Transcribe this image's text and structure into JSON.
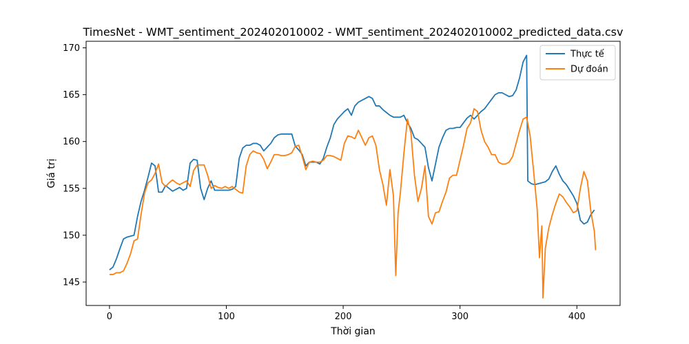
{
  "chart_data": {
    "type": "line",
    "title": "TimesNet - WMT_sentiment_202402010002 - WMT_sentiment_202402010002_predicted_data.csv",
    "xlabel": "Thời gian",
    "ylabel": "Giá trị",
    "xlim": [
      -20,
      437
    ],
    "ylim": [
      142.5,
      170.7
    ],
    "x_ticks": [
      0,
      100,
      200,
      300,
      400
    ],
    "y_ticks": [
      145,
      150,
      155,
      160,
      165,
      170
    ],
    "legend_position": "top-right",
    "grid": false,
    "series": [
      {
        "name": "Thực tế",
        "color": "#1f77b4",
        "points": [
          [
            0,
            146.3
          ],
          [
            3,
            146.6
          ],
          [
            6,
            147.5
          ],
          [
            9,
            148.6
          ],
          [
            12,
            149.6
          ],
          [
            15,
            149.8
          ],
          [
            18,
            149.9
          ],
          [
            21,
            150.0
          ],
          [
            24,
            152.0
          ],
          [
            27,
            153.6
          ],
          [
            30,
            154.8
          ],
          [
            33,
            156.2
          ],
          [
            36,
            157.7
          ],
          [
            39,
            157.4
          ],
          [
            42,
            154.6
          ],
          [
            45,
            154.6
          ],
          [
            48,
            155.3
          ],
          [
            51,
            155.0
          ],
          [
            54,
            154.7
          ],
          [
            57,
            154.9
          ],
          [
            60,
            155.1
          ],
          [
            63,
            154.8
          ],
          [
            66,
            155.0
          ],
          [
            69,
            157.7
          ],
          [
            72,
            158.1
          ],
          [
            75,
            158.0
          ],
          [
            78,
            155.0
          ],
          [
            81,
            153.8
          ],
          [
            84,
            155.0
          ],
          [
            87,
            155.8
          ],
          [
            90,
            154.8
          ],
          [
            93,
            154.8
          ],
          [
            96,
            154.8
          ],
          [
            99,
            154.8
          ],
          [
            102,
            154.8
          ],
          [
            105,
            154.9
          ],
          [
            108,
            155.2
          ],
          [
            111,
            158.2
          ],
          [
            114,
            159.3
          ],
          [
            117,
            159.6
          ],
          [
            120,
            159.6
          ],
          [
            123,
            159.8
          ],
          [
            126,
            159.8
          ],
          [
            129,
            159.6
          ],
          [
            132,
            159.0
          ],
          [
            135,
            159.4
          ],
          [
            138,
            159.8
          ],
          [
            141,
            160.4
          ],
          [
            144,
            160.7
          ],
          [
            147,
            160.8
          ],
          [
            150,
            160.8
          ],
          [
            153,
            160.8
          ],
          [
            156,
            160.8
          ],
          [
            159,
            159.5
          ],
          [
            162,
            159.1
          ],
          [
            165,
            158.6
          ],
          [
            168,
            157.4
          ],
          [
            171,
            157.8
          ],
          [
            174,
            157.8
          ],
          [
            177,
            157.8
          ],
          [
            180,
            157.6
          ],
          [
            183,
            158.2
          ],
          [
            186,
            159.4
          ],
          [
            189,
            160.4
          ],
          [
            192,
            161.8
          ],
          [
            195,
            162.4
          ],
          [
            198,
            162.8
          ],
          [
            201,
            163.2
          ],
          [
            204,
            163.5
          ],
          [
            207,
            162.8
          ],
          [
            210,
            163.8
          ],
          [
            213,
            164.2
          ],
          [
            216,
            164.4
          ],
          [
            219,
            164.6
          ],
          [
            222,
            164.8
          ],
          [
            225,
            164.6
          ],
          [
            228,
            163.8
          ],
          [
            231,
            163.8
          ],
          [
            234,
            163.4
          ],
          [
            237,
            163.1
          ],
          [
            240,
            162.8
          ],
          [
            243,
            162.6
          ],
          [
            246,
            162.6
          ],
          [
            249,
            162.6
          ],
          [
            252,
            162.8
          ],
          [
            255,
            162.0
          ],
          [
            258,
            161.4
          ],
          [
            261,
            160.4
          ],
          [
            264,
            160.2
          ],
          [
            267,
            159.8
          ],
          [
            270,
            159.4
          ],
          [
            273,
            157.2
          ],
          [
            276,
            155.8
          ],
          [
            279,
            157.6
          ],
          [
            282,
            159.4
          ],
          [
            285,
            160.4
          ],
          [
            288,
            161.2
          ],
          [
            291,
            161.4
          ],
          [
            294,
            161.4
          ],
          [
            297,
            161.5
          ],
          [
            300,
            161.5
          ],
          [
            303,
            162.0
          ],
          [
            306,
            162.5
          ],
          [
            309,
            162.8
          ],
          [
            312,
            162.4
          ],
          [
            315,
            162.8
          ],
          [
            318,
            163.2
          ],
          [
            321,
            163.5
          ],
          [
            324,
            164.0
          ],
          [
            327,
            164.5
          ],
          [
            330,
            165.0
          ],
          [
            333,
            165.2
          ],
          [
            336,
            165.2
          ],
          [
            339,
            165.0
          ],
          [
            342,
            164.8
          ],
          [
            345,
            164.9
          ],
          [
            348,
            165.5
          ],
          [
            351,
            166.8
          ],
          [
            354,
            168.5
          ],
          [
            357,
            169.2
          ],
          [
            358,
            155.8
          ],
          [
            361,
            155.5
          ],
          [
            364,
            155.4
          ],
          [
            367,
            155.5
          ],
          [
            370,
            155.6
          ],
          [
            373,
            155.7
          ],
          [
            376,
            156.0
          ],
          [
            379,
            156.8
          ],
          [
            382,
            157.4
          ],
          [
            385,
            156.5
          ],
          [
            388,
            155.8
          ],
          [
            391,
            155.4
          ],
          [
            394,
            154.8
          ],
          [
            397,
            154.2
          ],
          [
            400,
            153.4
          ],
          [
            403,
            151.6
          ],
          [
            406,
            151.2
          ],
          [
            409,
            151.4
          ],
          [
            412,
            152.2
          ],
          [
            415,
            152.7
          ]
        ]
      },
      {
        "name": "Dự đoán",
        "color": "#ff7f0e",
        "points": [
          [
            0,
            145.8
          ],
          [
            3,
            145.8
          ],
          [
            6,
            146.0
          ],
          [
            9,
            146.0
          ],
          [
            12,
            146.2
          ],
          [
            15,
            147.0
          ],
          [
            18,
            148.0
          ],
          [
            21,
            149.4
          ],
          [
            24,
            149.6
          ],
          [
            27,
            152.2
          ],
          [
            30,
            154.5
          ],
          [
            33,
            155.6
          ],
          [
            36,
            155.9
          ],
          [
            39,
            156.6
          ],
          [
            42,
            157.6
          ],
          [
            45,
            155.6
          ],
          [
            48,
            155.2
          ],
          [
            51,
            155.6
          ],
          [
            54,
            155.9
          ],
          [
            57,
            155.6
          ],
          [
            60,
            155.4
          ],
          [
            63,
            155.6
          ],
          [
            66,
            155.8
          ],
          [
            69,
            155.2
          ],
          [
            72,
            156.9
          ],
          [
            75,
            157.5
          ],
          [
            78,
            157.5
          ],
          [
            81,
            157.5
          ],
          [
            84,
            156.4
          ],
          [
            87,
            155.0
          ],
          [
            90,
            155.3
          ],
          [
            93,
            155.1
          ],
          [
            96,
            155.0
          ],
          [
            99,
            155.2
          ],
          [
            102,
            155.0
          ],
          [
            105,
            155.2
          ],
          [
            108,
            154.9
          ],
          [
            111,
            154.6
          ],
          [
            114,
            154.5
          ],
          [
            117,
            157.4
          ],
          [
            120,
            158.6
          ],
          [
            123,
            159.0
          ],
          [
            126,
            158.8
          ],
          [
            129,
            158.7
          ],
          [
            132,
            158.1
          ],
          [
            135,
            157.1
          ],
          [
            138,
            157.8
          ],
          [
            141,
            158.6
          ],
          [
            144,
            158.6
          ],
          [
            147,
            158.5
          ],
          [
            150,
            158.5
          ],
          [
            153,
            158.6
          ],
          [
            156,
            158.8
          ],
          [
            159,
            159.5
          ],
          [
            162,
            159.6
          ],
          [
            165,
            158.4
          ],
          [
            168,
            157.0
          ],
          [
            171,
            157.8
          ],
          [
            174,
            157.9
          ],
          [
            177,
            157.8
          ],
          [
            180,
            157.8
          ],
          [
            183,
            158.0
          ],
          [
            186,
            158.5
          ],
          [
            189,
            158.5
          ],
          [
            192,
            158.4
          ],
          [
            195,
            158.2
          ],
          [
            198,
            158.0
          ],
          [
            201,
            159.8
          ],
          [
            204,
            160.6
          ],
          [
            207,
            160.5
          ],
          [
            210,
            160.3
          ],
          [
            213,
            161.2
          ],
          [
            216,
            160.4
          ],
          [
            219,
            159.6
          ],
          [
            222,
            160.4
          ],
          [
            225,
            160.6
          ],
          [
            228,
            159.6
          ],
          [
            231,
            157.0
          ],
          [
            234,
            155.4
          ],
          [
            237,
            153.2
          ],
          [
            240,
            157.0
          ],
          [
            243,
            154.2
          ],
          [
            245,
            145.7
          ],
          [
            247,
            152.4
          ],
          [
            249,
            154.6
          ],
          [
            252,
            158.8
          ],
          [
            255,
            162.4
          ],
          [
            258,
            160.9
          ],
          [
            261,
            156.4
          ],
          [
            264,
            153.6
          ],
          [
            267,
            155.0
          ],
          [
            270,
            157.4
          ],
          [
            273,
            152.0
          ],
          [
            276,
            151.2
          ],
          [
            279,
            152.4
          ],
          [
            282,
            152.5
          ],
          [
            285,
            153.6
          ],
          [
            288,
            154.6
          ],
          [
            291,
            156.1
          ],
          [
            294,
            156.4
          ],
          [
            297,
            156.4
          ],
          [
            300,
            158.0
          ],
          [
            303,
            159.6
          ],
          [
            306,
            161.4
          ],
          [
            309,
            162.0
          ],
          [
            312,
            163.5
          ],
          [
            315,
            163.2
          ],
          [
            318,
            161.2
          ],
          [
            321,
            160.0
          ],
          [
            324,
            159.4
          ],
          [
            327,
            158.6
          ],
          [
            330,
            158.6
          ],
          [
            333,
            157.8
          ],
          [
            336,
            157.6
          ],
          [
            339,
            157.6
          ],
          [
            342,
            157.8
          ],
          [
            345,
            158.4
          ],
          [
            348,
            159.8
          ],
          [
            351,
            161.2
          ],
          [
            354,
            162.4
          ],
          [
            357,
            162.6
          ],
          [
            360,
            160.6
          ],
          [
            363,
            156.8
          ],
          [
            366,
            152.8
          ],
          [
            368,
            147.6
          ],
          [
            370,
            151.0
          ],
          [
            371,
            143.3
          ],
          [
            373,
            148.6
          ],
          [
            376,
            150.8
          ],
          [
            379,
            152.2
          ],
          [
            382,
            153.4
          ],
          [
            385,
            154.4
          ],
          [
            388,
            154.1
          ],
          [
            391,
            153.5
          ],
          [
            394,
            153.0
          ],
          [
            397,
            152.4
          ],
          [
            400,
            152.6
          ],
          [
            403,
            155.0
          ],
          [
            406,
            156.8
          ],
          [
            409,
            155.8
          ],
          [
            412,
            152.5
          ],
          [
            415,
            150.4
          ],
          [
            416,
            148.4
          ]
        ]
      }
    ]
  }
}
